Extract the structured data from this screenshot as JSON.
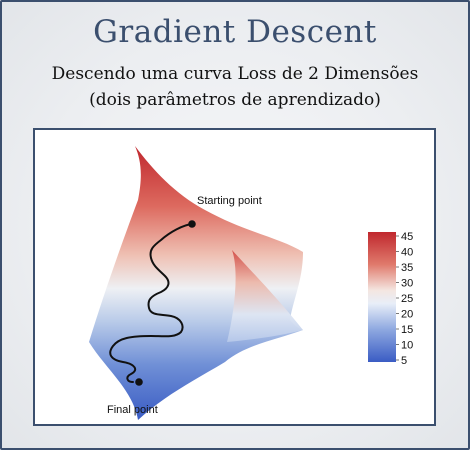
{
  "header": {
    "title": "Gradient Descent",
    "subtitle_line1": "Descendo uma curva Loss de 2 Dimensões",
    "subtitle_line2": "(dois parâmetros de aprendizado)"
  },
  "figure": {
    "start_label": "Starting point",
    "end_label": "Final point",
    "colorbar": {
      "ticks": [
        "45",
        "40",
        "35",
        "30",
        "25",
        "20",
        "15",
        "10",
        "5"
      ],
      "colors": {
        "high": "#c0282e",
        "mid": "#f4f0f0",
        "low": "#3a62c6"
      }
    }
  },
  "colors": {
    "frame_border": "#3b4f6e",
    "title": "#3b4f6e",
    "path": "#111111"
  }
}
